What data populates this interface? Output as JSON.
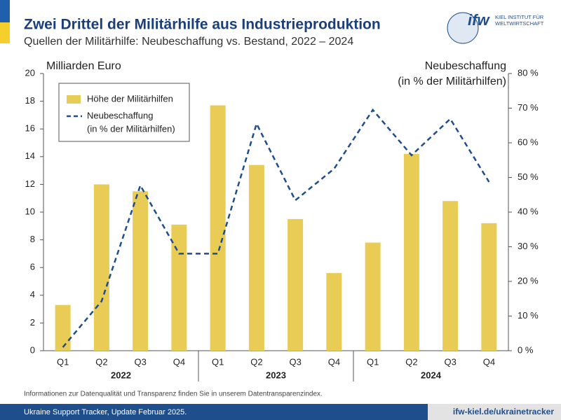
{
  "chart_data": {
    "type": "bar-line",
    "title": "Zwei Drittel der Militärhilfe aus Industrieproduktion",
    "subtitle": "Quellen der Militärhilfe: Neubeschaffung vs. Bestand, 2022 – 2024",
    "y_label": "Milliarden Euro",
    "y2_label": [
      "Neubeschaffung",
      "(in % der Militärhilfen)"
    ],
    "categories": [
      "Q1",
      "Q2",
      "Q3",
      "Q4",
      "Q1",
      "Q2",
      "Q3",
      "Q4",
      "Q1",
      "Q2",
      "Q3",
      "Q4"
    ],
    "groups": [
      "2022",
      "2023",
      "2024"
    ],
    "series": [
      {
        "name": [
          "Höhe der Militärhilfen"
        ],
        "type": "bar",
        "color": "#e8cc55",
        "values": [
          3.3,
          12.0,
          11.5,
          9.1,
          17.7,
          13.4,
          9.5,
          5.6,
          7.8,
          14.2,
          10.8,
          9.2
        ]
      },
      {
        "name": [
          "Neubeschaffung",
          "(in % der Militärhilfen)"
        ],
        "type": "line",
        "axis": "y2",
        "color": "#1f4e8c",
        "values": [
          1,
          14.3,
          47.7,
          28,
          28,
          65.5,
          43.4,
          52.5,
          69.5,
          56.4,
          66.9,
          48.7
        ]
      }
    ],
    "ylim": [
      0,
      20
    ],
    "yticks": [
      0,
      2,
      4,
      6,
      8,
      10,
      12,
      14,
      16,
      18,
      20
    ],
    "y2lim": [
      0,
      80
    ],
    "y2ticks": [
      {
        "value": 0,
        "label": "0 %"
      },
      {
        "value": 10,
        "label": "10 %"
      },
      {
        "value": 20,
        "label": "20 %"
      },
      {
        "value": 30,
        "label": "30 %"
      },
      {
        "value": 40,
        "label": "40 %"
      },
      {
        "value": 50,
        "label": "50 %"
      },
      {
        "value": 60,
        "label": "60 %"
      },
      {
        "value": 70,
        "label": "70 %"
      },
      {
        "value": 80,
        "label": "80 %"
      }
    ],
    "note": "Informationen zur Datenqualität und Transparenz finden Sie in unserem Datentransparenzindex.",
    "footer_left": "Ukraine Support Tracker, Update Februar 2025.",
    "footer_right": "ifw-kiel.de/ukrainetracker",
    "logo": [
      "ifw",
      "KIEL INSTITUT FÜR",
      "WELTWIRTSCHAFT"
    ]
  }
}
